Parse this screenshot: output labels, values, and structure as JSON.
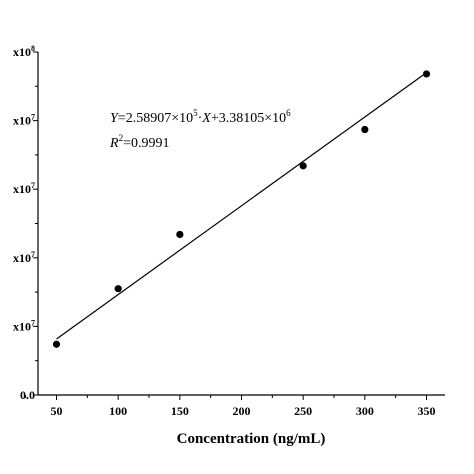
{
  "chart_data": {
    "type": "scatter",
    "xlabel": "Concentration (ng/mL)",
    "ylabel": "",
    "xlim": [
      35,
      365
    ],
    "ylim": [
      0,
      100000000
    ],
    "xticks": [
      50,
      100,
      150,
      200,
      250,
      300,
      350
    ],
    "yticks": [
      {
        "value": 0,
        "label": "0.0",
        "mant": "",
        "exp": ""
      },
      {
        "value": 20000000,
        "label": "x10",
        "mant": "",
        "exp": "7"
      },
      {
        "value": 40000000,
        "label": "x10",
        "mant": "",
        "exp": "7"
      },
      {
        "value": 60000000,
        "label": "x10",
        "mant": "",
        "exp": "7"
      },
      {
        "value": 80000000,
        "label": "x10",
        "mant": "",
        "exp": "7"
      },
      {
        "value": 100000000,
        "label": "x10",
        "mant": "",
        "exp": "8"
      }
    ],
    "points": [
      {
        "x": 50,
        "y": 14800000
      },
      {
        "x": 100,
        "y": 31000000
      },
      {
        "x": 150,
        "y": 46800000
      },
      {
        "x": 250,
        "y": 66800000
      },
      {
        "x": 300,
        "y": 77400000
      },
      {
        "x": 350,
        "y": 93600000
      }
    ],
    "fit": {
      "slope": 258907,
      "intercept": 3381050,
      "x_start": 50,
      "x_end": 350
    },
    "equation": {
      "y_var": "Y",
      "eq_part1": "=2.58907×10",
      "exp1": "5",
      "dot": "·",
      "x_var": "X",
      "eq_part2": "+3.38105×10",
      "exp2": "6",
      "r_var": "R",
      "r_exp": "2",
      "r_val": "=0.9991"
    },
    "grid": false,
    "legend": "none"
  }
}
